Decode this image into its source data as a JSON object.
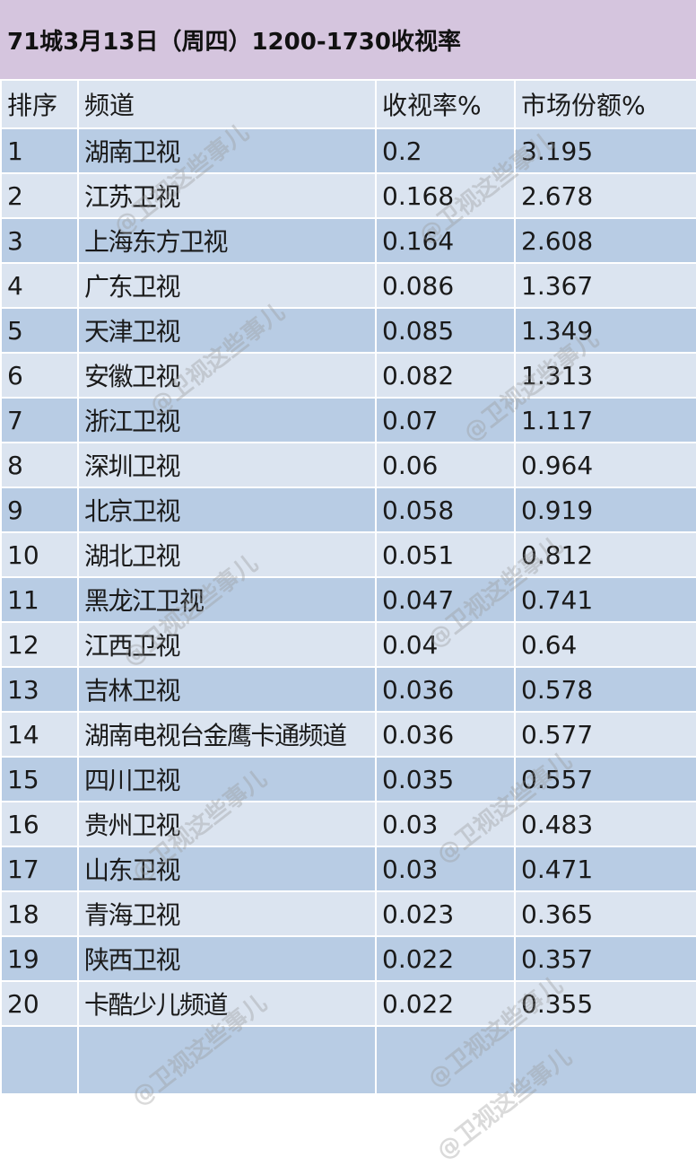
{
  "title": "71城3月13日（周四）1200-1730收视率",
  "headers": [
    "排序",
    "频道",
    "收视率%",
    "市场份额%"
  ],
  "rows": [
    [
      "1",
      "湖南卫视",
      "0.2",
      "3.195"
    ],
    [
      "2",
      "江苏卫视",
      "0.168",
      "2.678"
    ],
    [
      "3",
      "上海东方卫视",
      "0.164",
      "2.608"
    ],
    [
      "4",
      "广东卫视",
      "0.086",
      "1.367"
    ],
    [
      "5",
      "天津卫视",
      "0.085",
      "1.349"
    ],
    [
      "6",
      "安徽卫视",
      "0.082",
      "1.313"
    ],
    [
      "7",
      "浙江卫视",
      "0.07",
      "1.117"
    ],
    [
      "8",
      "深圳卫视",
      "0.06",
      "0.964"
    ],
    [
      "9",
      "北京卫视",
      "0.058",
      "0.919"
    ],
    [
      "10",
      "湖北卫视",
      "0.051",
      "0.812"
    ],
    [
      "11",
      "黑龙江卫视",
      "0.047",
      "0.741"
    ],
    [
      "12",
      "江西卫视",
      "0.04",
      "0.64"
    ],
    [
      "13",
      "吉林卫视",
      "0.036",
      "0.578"
    ],
    [
      "14",
      "湖南电视台金鹰卡通频道",
      "0.036",
      "0.577"
    ],
    [
      "15",
      "四川卫视",
      "0.035",
      "0.557"
    ],
    [
      "16",
      "贵州卫视",
      "0.03",
      "0.483"
    ],
    [
      "17",
      "山东卫视",
      "0.03",
      "0.471"
    ],
    [
      "18",
      "青海卫视",
      "0.023",
      "0.365"
    ],
    [
      "19",
      "陕西卫视",
      "0.022",
      "0.357"
    ],
    [
      "20",
      "卡酷少儿频道",
      "0.022",
      "0.355"
    ]
  ],
  "watermark": "@卫视这些事儿",
  "colors": {
    "title_bg": "#d5c5de",
    "row_light": "#dbe4f0",
    "row_dark": "#b8cce4"
  }
}
